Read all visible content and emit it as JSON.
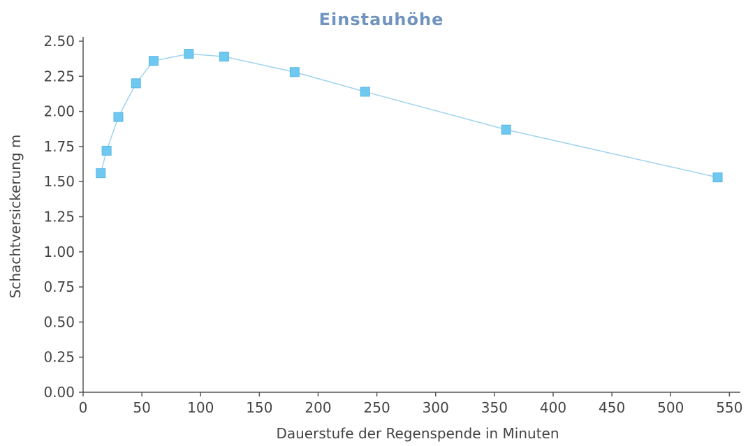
{
  "chart_data": {
    "type": "line",
    "title": "Einstauhöhe",
    "xlabel": "Dauerstufe der Regenspende in Minuten",
    "ylabel": "Schachtversickerung m",
    "xlim": [
      0,
      560
    ],
    "ylim": [
      0,
      2.5
    ],
    "x_ticks": [
      0,
      50,
      100,
      150,
      200,
      250,
      300,
      350,
      400,
      450,
      500,
      550
    ],
    "y_ticks": [
      "0.00",
      "0.25",
      "0.50",
      "0.75",
      "1.00",
      "1.25",
      "1.50",
      "1.75",
      "2.00",
      "2.25",
      "2.50"
    ],
    "grid": false,
    "legend": "none",
    "series": [
      {
        "x": [
          15,
          20,
          30,
          45,
          60,
          90,
          120,
          180,
          240,
          360,
          540
        ],
        "y": [
          1.56,
          1.72,
          1.96,
          2.2,
          2.36,
          2.41,
          2.39,
          2.28,
          2.14,
          1.87,
          1.53
        ]
      }
    ]
  },
  "colors": {
    "title": "#7094bf",
    "axis": "#555555",
    "text": "#444444",
    "marker": "#6fc8ef",
    "marker_edge": "#58b6e3",
    "line": "#9fd3ee"
  }
}
